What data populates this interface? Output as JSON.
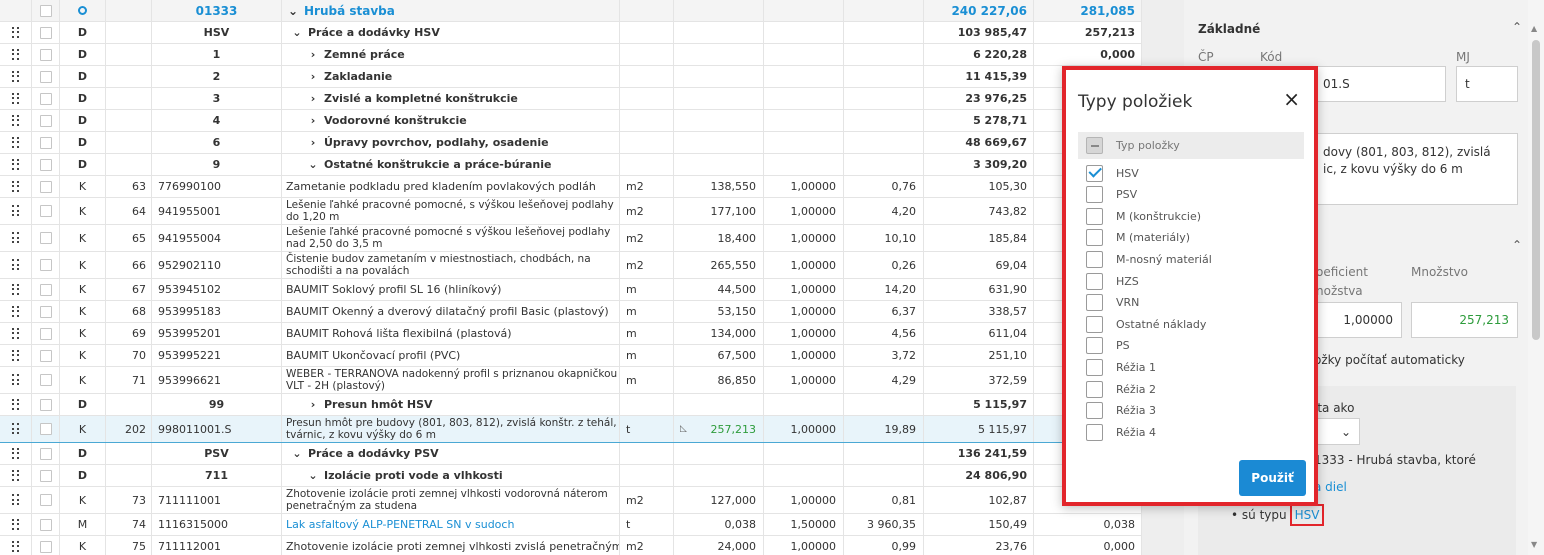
{
  "grid": {
    "header": {
      "code": "01333",
      "name": "Hrubá stavba",
      "total_price": "240 227,06",
      "weight": "281,085"
    },
    "rows": [
      {
        "kind": "section",
        "typ": "D",
        "code": "HSV",
        "chev": "⌄",
        "name": "Práce a dodávky HSV",
        "total_price": "103 985,47",
        "weight": "257,213",
        "indent": 0
      },
      {
        "kind": "section",
        "typ": "D",
        "code": "1",
        "chev": "›",
        "name": "Zemné práce",
        "total_price": "6 220,28",
        "weight": "0,000",
        "indent": 1
      },
      {
        "kind": "section",
        "typ": "D",
        "code": "2",
        "chev": "›",
        "name": "Zakladanie",
        "total_price": "11 415,39",
        "weight": "",
        "indent": 1
      },
      {
        "kind": "section",
        "typ": "D",
        "code": "3",
        "chev": "›",
        "name": "Zvislé a kompletné konštrukcie",
        "total_price": "23 976,25",
        "weight": "",
        "indent": 1
      },
      {
        "kind": "section",
        "typ": "D",
        "code": "4",
        "chev": "›",
        "name": "Vodorovné konštrukcie",
        "total_price": "5 278,71",
        "weight": "",
        "indent": 1
      },
      {
        "kind": "section",
        "typ": "D",
        "code": "6",
        "chev": "›",
        "name": "Úpravy povrchov, podlahy, osadenie",
        "total_price": "48 669,67",
        "weight": "",
        "indent": 1
      },
      {
        "kind": "section",
        "typ": "D",
        "code": "9",
        "chev": "⌄",
        "name": "Ostatné konštrukcie a práce-búranie",
        "total_price": "3 309,20",
        "weight": "",
        "indent": 1
      },
      {
        "kind": "item",
        "typ": "K",
        "pc": "63",
        "code": "776990100",
        "desc": "Zametanie podkladu pred kladením povlakových podláh",
        "mj": "m2",
        "qty": "138,550",
        "coef": "1,00000",
        "unit_price": "0,76",
        "total_price": "105,30",
        "weight": ""
      },
      {
        "kind": "item",
        "typ": "K",
        "pc": "64",
        "code": "941955001",
        "desc": "Lešenie ľahké pracovné pomocné, s výškou lešeňovej podlahy do 1,20 m",
        "mj": "m2",
        "qty": "177,100",
        "coef": "1,00000",
        "unit_price": "4,20",
        "total_price": "743,82",
        "weight": ""
      },
      {
        "kind": "item",
        "typ": "K",
        "pc": "65",
        "code": "941955004",
        "desc": "Lešenie ľahké pracovné pomocné s výškou lešeňovej podlahy nad 2,50 do 3,5 m",
        "mj": "m2",
        "qty": "18,400",
        "coef": "1,00000",
        "unit_price": "10,10",
        "total_price": "185,84",
        "weight": ""
      },
      {
        "kind": "item",
        "typ": "K",
        "pc": "66",
        "code": "952902110",
        "desc": "Čistenie budov zametaním v miestnostiach, chodbách, na schodišti a na povalách",
        "mj": "m2",
        "qty": "265,550",
        "coef": "1,00000",
        "unit_price": "0,26",
        "total_price": "69,04",
        "weight": ""
      },
      {
        "kind": "item",
        "typ": "K",
        "pc": "67",
        "code": "953945102",
        "desc": "BAUMIT Soklový profil SL 16 (hliníkový)",
        "mj": "m",
        "qty": "44,500",
        "coef": "1,00000",
        "unit_price": "14,20",
        "total_price": "631,90",
        "weight": ""
      },
      {
        "kind": "item",
        "typ": "K",
        "pc": "68",
        "code": "953995183",
        "desc": "BAUMIT Okenný a dverový dilatačný profil Basic (plastový)",
        "mj": "m",
        "qty": "53,150",
        "coef": "1,00000",
        "unit_price": "6,37",
        "total_price": "338,57",
        "weight": ""
      },
      {
        "kind": "item",
        "typ": "K",
        "pc": "69",
        "code": "953995201",
        "desc": "BAUMIT Rohová lišta flexibilná (plastová)",
        "mj": "m",
        "qty": "134,000",
        "coef": "1,00000",
        "unit_price": "4,56",
        "total_price": "611,04",
        "weight": ""
      },
      {
        "kind": "item",
        "typ": "K",
        "pc": "70",
        "code": "953995221",
        "desc": "BAUMIT Ukončovací profil (PVC)",
        "mj": "m",
        "qty": "67,500",
        "coef": "1,00000",
        "unit_price": "3,72",
        "total_price": "251,10",
        "weight": ""
      },
      {
        "kind": "item",
        "typ": "K",
        "pc": "71",
        "code": "953996621",
        "desc": "WEBER - TERRANOVA nadokenný profil s priznanou okapničkou VLT - 2H (plastový)",
        "mj": "m",
        "qty": "86,850",
        "coef": "1,00000",
        "unit_price": "4,29",
        "total_price": "372,59",
        "weight": ""
      },
      {
        "kind": "section",
        "typ": "D",
        "code": "99",
        "chev": "›",
        "name": "Presun hmôt HSV",
        "total_price": "5 115,97",
        "weight": "",
        "indent": 1
      },
      {
        "kind": "item",
        "typ": "K",
        "pc": "202",
        "code": "998011001.S",
        "desc": "Presun hmôt pre budovy (801, 803, 812), zvislá konštr. z tehál, tvárnic, z kovu výšky do 6 m",
        "mj": "t",
        "qty": "257,213",
        "coef": "1,00000",
        "unit_price": "19,89",
        "total_price": "5 115,97",
        "weight": "",
        "selected": true
      },
      {
        "kind": "section",
        "typ": "D",
        "code": "PSV",
        "chev": "⌄",
        "name": "Práce a dodávky PSV",
        "total_price": "136 241,59",
        "weight": "",
        "indent": 0
      },
      {
        "kind": "section",
        "typ": "D",
        "code": "711",
        "chev": "⌄",
        "name": "Izolácie proti vode a vlhkosti",
        "total_price": "24 806,90",
        "weight": "",
        "indent": 1
      },
      {
        "kind": "item",
        "typ": "K",
        "pc": "73",
        "code": "711111001",
        "desc": "Zhotovenie izolácie proti zemnej vlhkosti vodorovná náterom penetračným za studena",
        "mj": "m2",
        "qty": "127,000",
        "coef": "1,00000",
        "unit_price": "0,81",
        "total_price": "102,87",
        "weight": "0,000"
      },
      {
        "kind": "item",
        "typ": "M",
        "pc": "74",
        "code": "1116315000",
        "desc": "Lak asfaltový ALP-PENETRAL SN v sudoch",
        "mj": "t",
        "qty": "0,038",
        "coef": "1,50000",
        "unit_price": "3 960,35",
        "total_price": "150,49",
        "weight": "0,038",
        "desc_link": true
      },
      {
        "kind": "item",
        "typ": "K",
        "pc": "75",
        "code": "711112001",
        "desc": "Zhotovenie izolácie proti zemnej vlhkosti zvislá penetračným",
        "mj": "m2",
        "qty": "24,000",
        "coef": "1,00000",
        "unit_price": "0,99",
        "total_price": "23,76",
        "weight": "0,000"
      }
    ]
  },
  "panel": {
    "section_title": "Základné",
    "labels": {
      "cp": "ČP",
      "code": "Kód",
      "mj": "MJ",
      "coef_a": "oeficient",
      "coef_b": "nožstva",
      "qty": "Množstvo"
    },
    "code_value": "01.S",
    "mj_value": "t",
    "desc_lines": [
      "dovy (801, 803, 812), zvislá",
      "ic, z kovu výšky do 6 m"
    ],
    "coef_value": "1,00000",
    "qty_value": "257,213",
    "auto_text": "ožky počítať automaticky",
    "group_text": "ita ako",
    "belongs_text": "1333 - Hrubá stavba, ktoré",
    "link_text": "a diel",
    "type_prefix": "• sú typu",
    "type_value": "HSV"
  },
  "modal": {
    "title": "Typy položiek",
    "close": "×",
    "header_label": "Typ položky",
    "options": [
      {
        "label": "HSV",
        "checked": true
      },
      {
        "label": "PSV",
        "checked": false
      },
      {
        "label": "M (konštrukcie)",
        "checked": false
      },
      {
        "label": "M (materiály)",
        "checked": false
      },
      {
        "label": "M-nosný materiál",
        "checked": false
      },
      {
        "label": "HZS",
        "checked": false
      },
      {
        "label": "VRN",
        "checked": false
      },
      {
        "label": "Ostatné náklady",
        "checked": false
      },
      {
        "label": "PS",
        "checked": false
      },
      {
        "label": "Réžia 1",
        "checked": false
      },
      {
        "label": "Réžia 2",
        "checked": false
      },
      {
        "label": "Réžia 3",
        "checked": false
      },
      {
        "label": "Réžia 4",
        "checked": false
      }
    ],
    "apply": "Použiť"
  },
  "colors": {
    "accent": "#1a8fd4",
    "highlight_border": "#e2252b",
    "qty_green": "#2e9c3c",
    "selected_row": "#e8f4fa"
  }
}
